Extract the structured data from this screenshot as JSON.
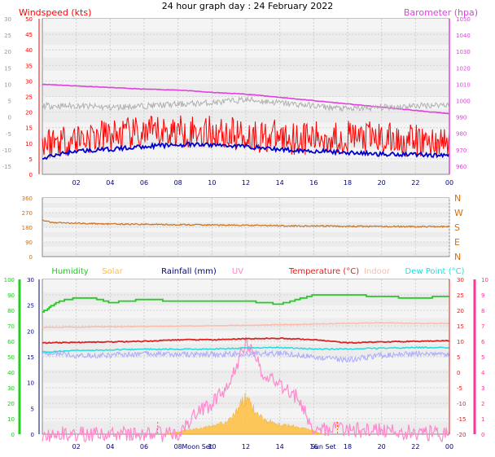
{
  "title": "24 hour graph day : 24 February 2022",
  "colors": {
    "wind": "#ff0000",
    "gust": "#b0b0b0",
    "avg": "#0000cc",
    "baro": "#e040e0",
    "dir": "#d07018",
    "hum": "#22cc22",
    "solar": "#ffc040",
    "rain": "#000080",
    "uv": "#ff88cc",
    "temp": "#dd2222",
    "indoor": "#ffbbaa",
    "dew": "#22dddd",
    "wc": "#aaaaff",
    "right_axis": "#ff3399",
    "plot_bg": "#ececec"
  },
  "chart_data": [
    {
      "type": "line",
      "title": "24 hour graph day : 24 February 2022",
      "x_ticks": [
        "02",
        "04",
        "06",
        "08",
        "10",
        "12",
        "14",
        "16",
        "18",
        "20",
        "22",
        "00"
      ],
      "left_label": "Windspeed (kts)",
      "left_ticks": [
        "0",
        "5",
        "10",
        "15",
        "20",
        "25",
        "30",
        "35",
        "40",
        "45",
        "50"
      ],
      "outer_left_ticks": [
        "-15",
        "-10",
        "-5",
        "0",
        "5",
        "10",
        "15",
        "20",
        "25",
        "30"
      ],
      "right_label": "Barometer (hpa)",
      "right_ticks": [
        "960",
        "970",
        "980",
        "990",
        "1000",
        "1010",
        "1020",
        "1030",
        "1040",
        "1050"
      ],
      "ylim_left": [
        0,
        50
      ],
      "ylim_right": [
        955,
        1050
      ],
      "grid": true,
      "series": [
        {
          "name": "Barometer (hpa)",
          "axis": "right",
          "x": [
            0,
            2,
            4,
            6,
            8,
            10,
            12,
            14,
            16,
            18,
            20,
            22,
            24
          ],
          "values": [
            1010,
            1009,
            1008,
            1007,
            1006.5,
            1005,
            1004,
            1002,
            1000,
            998,
            996,
            994,
            992
          ]
        },
        {
          "name": "gust",
          "axis": "left",
          "x": [
            0,
            2,
            4,
            6,
            8,
            10,
            12,
            14,
            16,
            18,
            20,
            22,
            24
          ],
          "values": [
            22,
            22,
            21.5,
            22,
            22.5,
            23,
            24,
            23,
            22,
            21,
            21.5,
            22,
            22.5
          ]
        },
        {
          "name": "wind",
          "axis": "left",
          "x": [
            0,
            2,
            4,
            6,
            8,
            10,
            12,
            14,
            16,
            18,
            20,
            22,
            24
          ],
          "values": [
            10,
            11.5,
            12.5,
            13,
            14,
            13.5,
            12.5,
            12,
            11.5,
            12,
            11.5,
            10.5,
            10
          ]
        },
        {
          "name": "avg",
          "axis": "left",
          "x": [
            0,
            1,
            2,
            4,
            6,
            8,
            10,
            12,
            14,
            16,
            18,
            20,
            22,
            24
          ],
          "values": [
            5,
            6.5,
            7.5,
            8,
            9,
            9.5,
            9.5,
            9,
            8,
            7.5,
            7,
            6.5,
            6.5,
            6
          ]
        }
      ]
    },
    {
      "type": "line",
      "left_ticks": [
        "0",
        "90",
        "180",
        "270",
        "360"
      ],
      "right_ticks": [
        "N",
        "W",
        "S",
        "E",
        "N"
      ],
      "ylim": [
        0,
        360
      ],
      "grid": true,
      "series": [
        {
          "name": "direction",
          "x": [
            0,
            0.5,
            2,
            4,
            6,
            8,
            10,
            12,
            14,
            16,
            18,
            20,
            22,
            24
          ],
          "values": [
            225,
            210,
            205,
            200,
            198,
            196,
            194,
            192,
            190,
            188,
            186,
            185,
            184,
            184
          ]
        }
      ]
    },
    {
      "type": "line",
      "legend": [
        "Humidity",
        "Solar",
        "Rainfall (mm)",
        "UV",
        "Temperature (°C)",
        "Indoor",
        "Dew Point (°C)"
      ],
      "x_ticks": [
        "02",
        "04",
        "06",
        "08",
        "Moon Set",
        "10",
        "12",
        "14",
        "16",
        "Sun Set",
        "18",
        "20",
        "22",
        "00"
      ],
      "outer_left_ticks": [
        "0",
        "10",
        "20",
        "30",
        "40",
        "50",
        "60",
        "70",
        "80",
        "90",
        "100"
      ],
      "left_ticks": [
        "0",
        "5",
        "10",
        "15",
        "20",
        "25",
        "30"
      ],
      "right_ticks": [
        "-20",
        "-15",
        "-10",
        "-5",
        "0",
        "5",
        "10",
        "15",
        "20",
        "25",
        "30"
      ],
      "outer_right_ticks": [
        "0",
        "1",
        "2",
        "3",
        "4",
        "5",
        "6",
        "7",
        "8",
        "9",
        "10"
      ],
      "ylim_left": [
        0,
        30
      ],
      "ylim_right": [
        -20,
        30
      ],
      "grid": true,
      "series": [
        {
          "name": "Humidity",
          "axis": "humidity",
          "x": [
            0,
            1,
            2,
            3,
            4,
            6,
            8,
            10,
            12,
            14,
            16,
            18,
            20,
            22,
            24
          ],
          "values": [
            79,
            86,
            88,
            88,
            85,
            87,
            86,
            86,
            86,
            84,
            90,
            90,
            89,
            88,
            89
          ]
        },
        {
          "name": "Indoor",
          "axis": "right",
          "x": [
            0,
            2,
            4,
            6,
            8,
            10,
            12,
            14,
            16,
            18,
            20,
            22,
            24
          ],
          "values": [
            14.5,
            14.6,
            14.7,
            14.8,
            14.9,
            15.0,
            15.2,
            15.4,
            15.6,
            15.8,
            16.0,
            15.8,
            15.8
          ]
        },
        {
          "name": "Temperature (°C)",
          "axis": "right",
          "x": [
            0,
            2,
            4,
            6,
            8,
            10,
            12,
            14,
            16,
            18,
            20,
            22,
            24
          ],
          "values": [
            9.5,
            9.6,
            9.8,
            10.0,
            10.5,
            10.5,
            10.8,
            11.0,
            10.5,
            9.5,
            9.8,
            10.0,
            10.2
          ]
        },
        {
          "name": "Dew Point (°C)",
          "axis": "right",
          "x": [
            0,
            2,
            4,
            6,
            8,
            10,
            12,
            14,
            16,
            18,
            20,
            22,
            24
          ],
          "values": [
            6.5,
            7.0,
            7.2,
            7.5,
            7.5,
            7.5,
            7.8,
            8.0,
            7.5,
            7.5,
            7.8,
            8.0,
            8.0
          ]
        },
        {
          "name": "wind chill",
          "axis": "right",
          "x": [
            0,
            2,
            4,
            6,
            8,
            10,
            12,
            14,
            16,
            18,
            20,
            22,
            24
          ],
          "values": [
            6.0,
            5.5,
            5.5,
            6.0,
            5.8,
            5.8,
            6.0,
            6.2,
            5.0,
            4.0,
            5.5,
            6.0,
            6.0
          ]
        },
        {
          "name": "Solar",
          "axis": "solar",
          "x": [
            0,
            7.2,
            8,
            9,
            10,
            11,
            11.5,
            12,
            12.5,
            13,
            14,
            15,
            16,
            16.5,
            24
          ],
          "values": [
            0,
            0,
            30,
            60,
            90,
            160,
            300,
            420,
            280,
            170,
            120,
            90,
            40,
            0,
            0
          ]
        },
        {
          "name": "UV",
          "axis": "uv",
          "x": [
            0,
            8,
            9,
            10,
            11,
            12,
            13,
            14,
            15,
            16,
            24
          ],
          "values": [
            0,
            0,
            0.3,
            0.5,
            0.8,
            1.5,
            1.0,
            0.8,
            0.6,
            0.1,
            0
          ]
        }
      ]
    }
  ]
}
